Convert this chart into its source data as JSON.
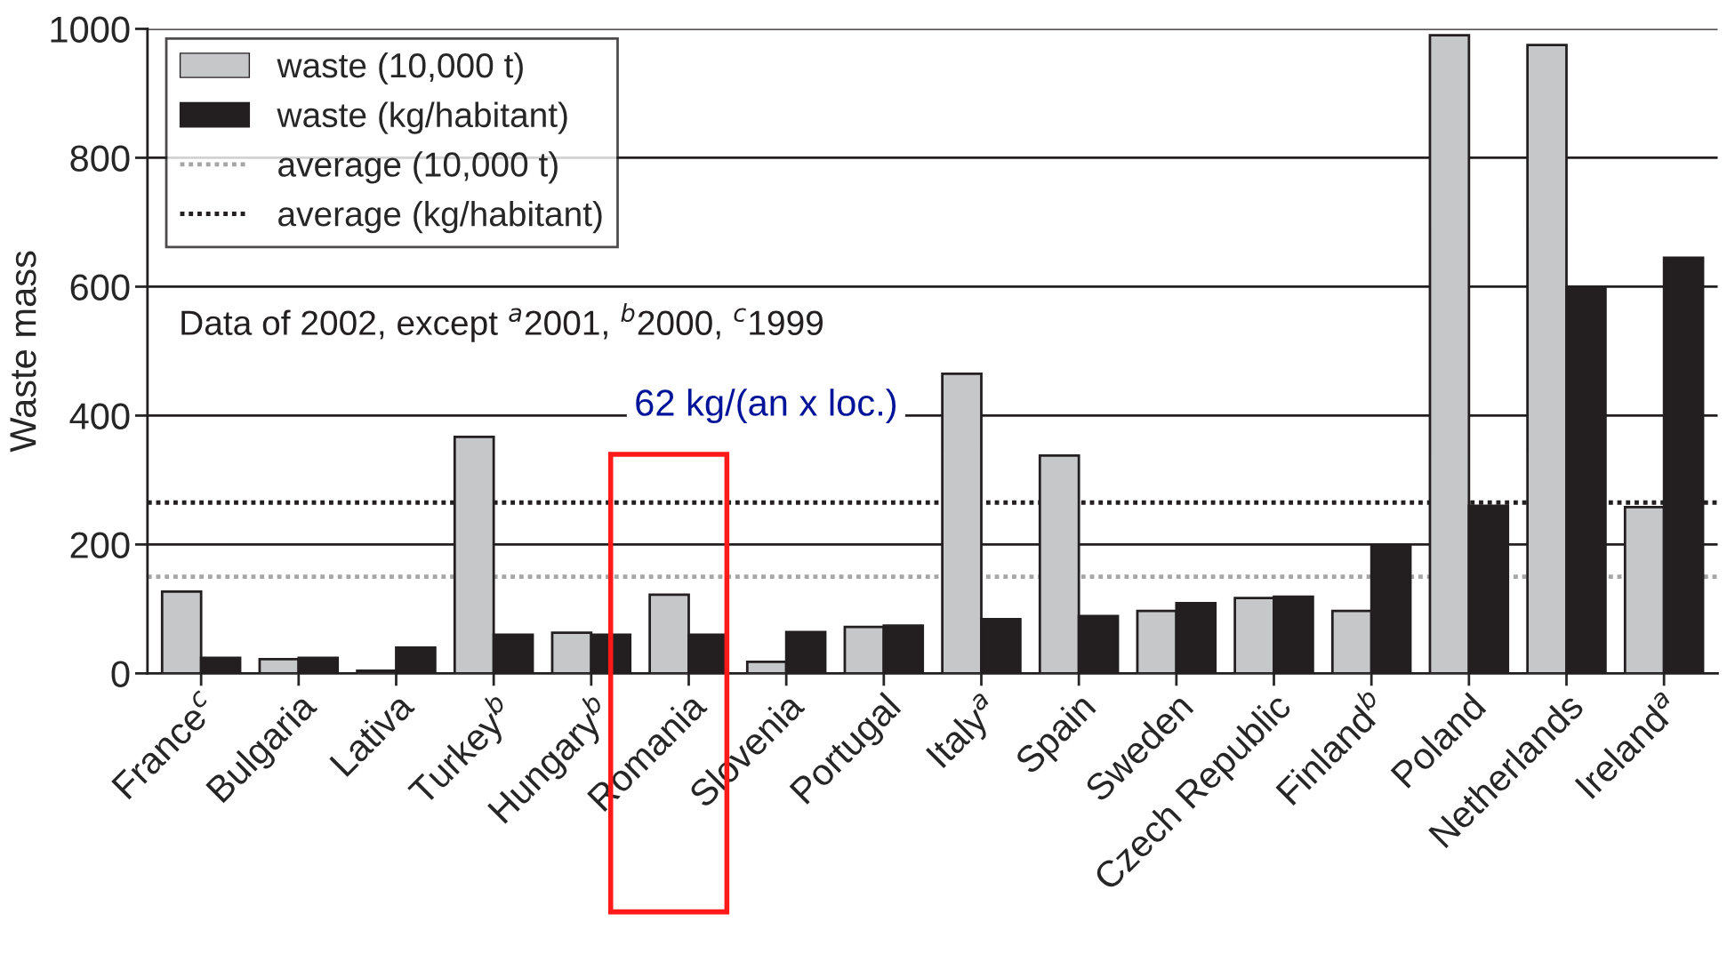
{
  "chart_data": {
    "type": "bar",
    "ylabel": "Waste mass",
    "categories": [
      "France$^{c}$",
      "Bulgaria",
      "Lativa",
      "Turkey$^{b}$",
      "Hungary$^{b}$",
      "Romania",
      "Slovenia",
      "Portugal",
      "Italy$^{a}$",
      "Spain",
      "Sweden",
      "Czech Republic",
      "Finland$^{b}$",
      "Poland",
      "Netherlands",
      "Ireland$^{a}$"
    ],
    "series": [
      {
        "name": "waste (10,000 t)",
        "color": "#c6c7c9",
        "values": [
          127,
          22,
          4,
          367,
          63,
          122,
          18,
          72,
          465,
          338,
          97,
          117,
          97,
          990,
          975,
          258
        ]
      },
      {
        "name": "waste (kg/habitant)",
        "color": "#231f20",
        "values": [
          24,
          24,
          40,
          60,
          60,
          60,
          64,
          74,
          84,
          89,
          109,
          119,
          200,
          260,
          600,
          645
        ]
      }
    ],
    "ref_lines": [
      {
        "axis": "y",
        "value": 150,
        "label": "average (10,000 t)",
        "color": "#a6a6a6",
        "line_style": "dotted"
      },
      {
        "axis": "y",
        "value": 265,
        "label": "average (kg/habitant)",
        "color": "#231f20",
        "line_style": "dotted"
      }
    ],
    "ylim": [
      0,
      1000
    ],
    "yticks": [
      0,
      200,
      400,
      600,
      800,
      1000
    ],
    "grid": "y",
    "legend": "top left",
    "annotations": [
      "Data of 2002, except $^{a}$2001, $^{b}$2000, $^{c}$1999",
      "62 kg/(an x loc.)"
    ]
  }
}
